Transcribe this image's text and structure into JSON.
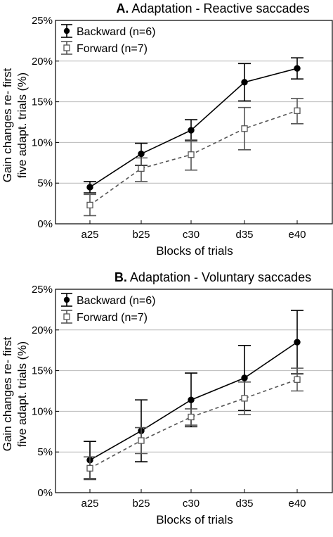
{
  "chart_data": [
    {
      "type": "line",
      "title_letter": "A.",
      "title": "Adaptation - Reactive saccades",
      "xlabel": "Blocks of trials",
      "ylabel_lines": [
        "Gain changes re- first",
        "five adapt. trials (%)"
      ],
      "categories": [
        "a25",
        "b25",
        "c30",
        "d35",
        "e40"
      ],
      "ylim": [
        0,
        25
      ],
      "yticks": [
        0,
        5,
        10,
        15,
        20,
        25
      ],
      "ytick_labels": [
        "0%",
        "5%",
        "10%",
        "15%",
        "20%",
        "25%"
      ],
      "grid": "horizontal",
      "legend_position": "top-left",
      "series": [
        {
          "name": "Backward (n=6)",
          "marker": "filled-circle",
          "line": "solid",
          "color": "#000000",
          "values": [
            4.5,
            8.6,
            11.5,
            17.4,
            19.1
          ],
          "err_low": [
            3.8,
            7.2,
            10.2,
            15.1,
            17.8
          ],
          "err_high": [
            5.2,
            9.9,
            12.8,
            19.7,
            20.4
          ]
        },
        {
          "name": "Forward (n=7)",
          "marker": "open-square",
          "line": "dashed",
          "color": "#555555",
          "values": [
            2.3,
            6.8,
            8.5,
            11.7,
            13.9
          ],
          "err_low": [
            1.0,
            5.2,
            6.6,
            9.1,
            12.3
          ],
          "err_high": [
            3.6,
            8.1,
            10.3,
            14.3,
            15.4
          ]
        }
      ]
    },
    {
      "type": "line",
      "title_letter": "B.",
      "title": "Adaptation - Voluntary saccades",
      "xlabel": "Blocks of trials",
      "ylabel_lines": [
        "Gain changes re- first",
        "five adapt. trials (%)"
      ],
      "categories": [
        "a25",
        "b25",
        "c30",
        "d35",
        "e40"
      ],
      "ylim": [
        0,
        25
      ],
      "yticks": [
        0,
        5,
        10,
        15,
        20,
        25
      ],
      "ytick_labels": [
        "0%",
        "5%",
        "10%",
        "15%",
        "20%",
        "25%"
      ],
      "grid": "horizontal",
      "legend_position": "top-left",
      "series": [
        {
          "name": "Backward (n=6)",
          "marker": "filled-circle",
          "line": "solid",
          "color": "#000000",
          "values": [
            4.0,
            7.6,
            11.4,
            14.1,
            18.5
          ],
          "err_low": [
            1.7,
            3.8,
            8.1,
            10.1,
            14.6
          ],
          "err_high": [
            6.3,
            11.4,
            14.7,
            18.1,
            22.4
          ]
        },
        {
          "name": "Forward (n=7)",
          "marker": "open-square",
          "line": "dashed",
          "color": "#555555",
          "values": [
            3.0,
            6.4,
            9.3,
            11.6,
            13.9
          ],
          "err_low": [
            1.6,
            4.8,
            8.3,
            9.6,
            12.5
          ],
          "err_high": [
            4.4,
            8.0,
            10.3,
            13.6,
            15.3
          ]
        }
      ]
    }
  ]
}
